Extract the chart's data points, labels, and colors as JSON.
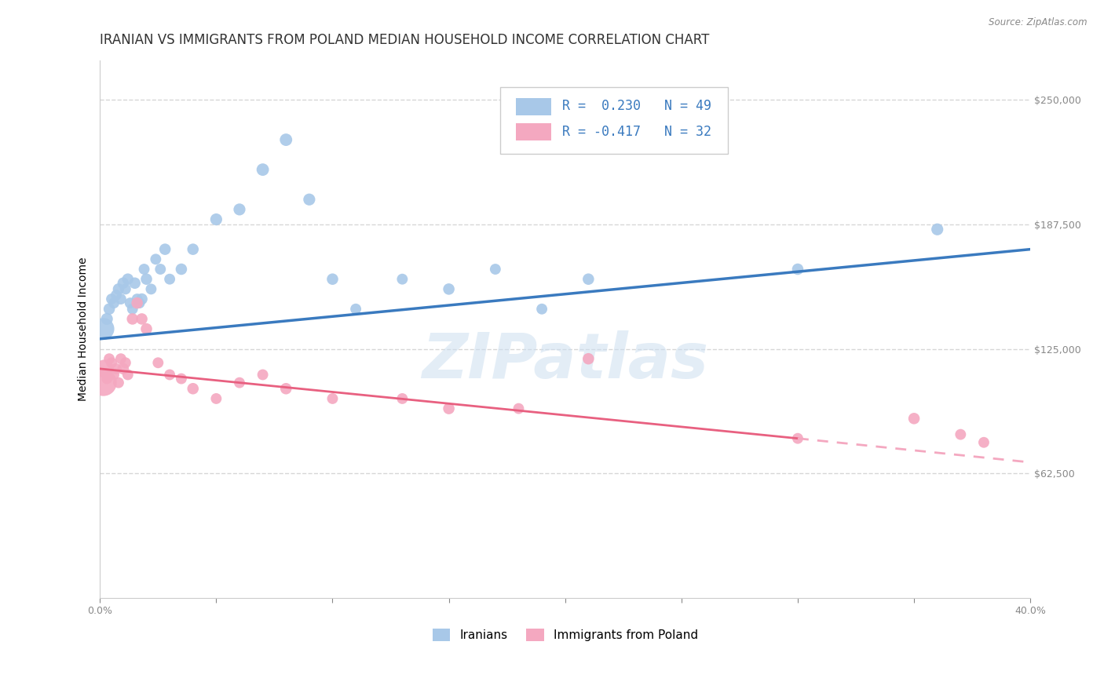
{
  "title": "IRANIAN VS IMMIGRANTS FROM POLAND MEDIAN HOUSEHOLD INCOME CORRELATION CHART",
  "source": "Source: ZipAtlas.com",
  "ylabel": "Median Household Income",
  "watermark": "ZIPatlas",
  "y_ticks": [
    62500,
    125000,
    187500,
    250000
  ],
  "y_tick_labels": [
    "$62,500",
    "$125,000",
    "$187,500",
    "$250,000"
  ],
  "x_range": [
    0,
    40
  ],
  "y_range": [
    0,
    270000
  ],
  "color_iranians": "#a8c8e8",
  "color_poland": "#f4a8c0",
  "color_line_iranians": "#3a7abf",
  "color_line_poland": "#e86080",
  "color_line_poland_dash": "#f4a8c0",
  "background_color": "#ffffff",
  "grid_color": "#cccccc",
  "title_fontsize": 12,
  "axis_label_fontsize": 10,
  "tick_label_fontsize": 9,
  "iranians_x": [
    0.3,
    0.4,
    0.5,
    0.6,
    0.7,
    0.8,
    0.9,
    1.0,
    1.1,
    1.2,
    1.3,
    1.4,
    1.5,
    1.6,
    1.7,
    1.8,
    1.9,
    2.0,
    2.2,
    2.4,
    2.6,
    2.8,
    3.0,
    3.5,
    4.0,
    5.0,
    6.0,
    7.0,
    8.0,
    9.0,
    10.0,
    11.0,
    13.0,
    15.0,
    17.0,
    19.0,
    21.0,
    30.0,
    36.0
  ],
  "iranians_y": [
    140000,
    145000,
    150000,
    148000,
    152000,
    155000,
    150000,
    158000,
    155000,
    160000,
    148000,
    145000,
    158000,
    150000,
    148000,
    150000,
    165000,
    160000,
    155000,
    170000,
    165000,
    175000,
    160000,
    165000,
    175000,
    190000,
    195000,
    215000,
    230000,
    200000,
    160000,
    145000,
    160000,
    155000,
    165000,
    145000,
    160000,
    165000,
    185000
  ],
  "iranians_sizes": [
    120,
    110,
    100,
    100,
    100,
    110,
    100,
    110,
    100,
    110,
    100,
    100,
    110,
    100,
    100,
    110,
    100,
    110,
    100,
    100,
    100,
    110,
    100,
    110,
    110,
    120,
    120,
    130,
    130,
    120,
    110,
    100,
    100,
    110,
    100,
    100,
    110,
    110,
    120
  ],
  "poland_x": [
    0.2,
    0.3,
    0.4,
    0.5,
    0.6,
    0.7,
    0.8,
    0.9,
    1.0,
    1.1,
    1.2,
    1.4,
    1.6,
    1.8,
    2.0,
    2.5,
    3.0,
    3.5,
    4.0,
    5.0,
    6.0,
    7.0,
    8.0,
    10.0,
    13.0,
    15.0,
    18.0,
    21.0,
    30.0,
    35.0,
    37.0,
    38.0
  ],
  "poland_y": [
    115000,
    110000,
    120000,
    118000,
    112000,
    115000,
    108000,
    120000,
    115000,
    118000,
    112000,
    140000,
    148000,
    140000,
    135000,
    118000,
    112000,
    110000,
    105000,
    100000,
    108000,
    112000,
    105000,
    100000,
    100000,
    95000,
    95000,
    120000,
    80000,
    90000,
    82000,
    78000
  ],
  "poland_sizes": [
    280,
    100,
    100,
    100,
    100,
    100,
    100,
    100,
    110,
    100,
    100,
    110,
    110,
    110,
    110,
    100,
    100,
    100,
    110,
    100,
    100,
    100,
    110,
    100,
    100,
    110,
    100,
    110,
    100,
    110,
    100,
    100
  ],
  "iranians_large_x": [
    0.2
  ],
  "iranians_large_y": [
    135000
  ],
  "poland_large_x": [],
  "poland_large_y": []
}
